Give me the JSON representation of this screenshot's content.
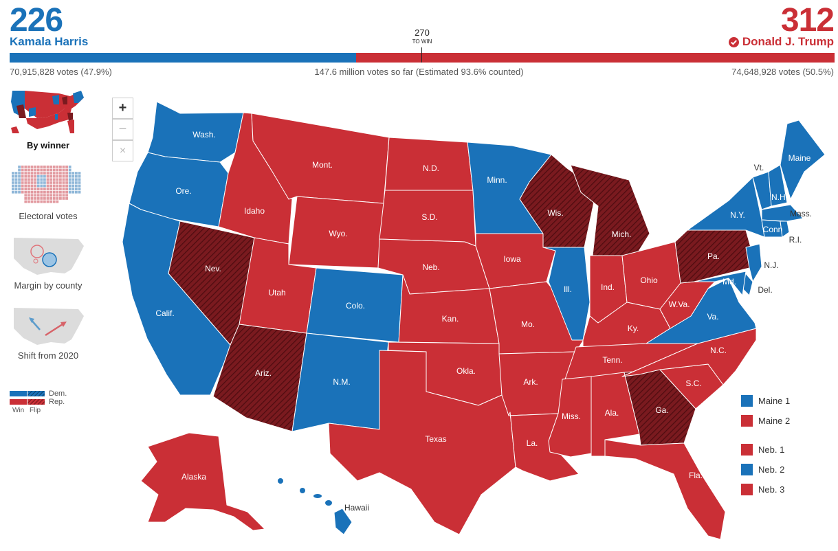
{
  "colors": {
    "dem": "#1a72b9",
    "rep": "#ca2f36",
    "rep_flip": "#7a1a1f",
    "dem_flip": "#0d3f66",
    "border": "#ffffff"
  },
  "header": {
    "harris_ev": "226",
    "harris_name": "Kamala Harris",
    "trump_ev": "312",
    "trump_name": "Donald J. Trump",
    "to_win_num": "270",
    "to_win_label": "TO WIN",
    "harris_votes": "70,915,828 votes (47.9%)",
    "total_votes": "147.6 million votes so far (Estimated 93.6% counted)",
    "trump_votes": "74,648,928 votes (50.5%)",
    "harris_ev_fraction": 0.4201,
    "winner_icon": "check-circle-icon"
  },
  "thumbnails": [
    {
      "label": "By winner",
      "selected": true
    },
    {
      "label": "Electoral votes",
      "selected": false
    },
    {
      "label": "Margin by county",
      "selected": false
    },
    {
      "label": "Shift from 2020",
      "selected": false
    }
  ],
  "key": {
    "dem": "Dem.",
    "rep": "Rep.",
    "win": "Win",
    "flip": "Flip"
  },
  "zoom": {
    "in": "+",
    "out": "−",
    "reset": "×"
  },
  "districts": [
    {
      "label": "Maine 1",
      "party": "dem"
    },
    {
      "label": "Maine 2",
      "party": "rep"
    },
    {
      "label": "Neb. 1",
      "party": "rep"
    },
    {
      "label": "Neb. 2",
      "party": "dem"
    },
    {
      "label": "Neb. 3",
      "party": "rep"
    }
  ],
  "states": {
    "wa": "Wash.",
    "or": "Ore.",
    "ca": "Calif.",
    "nv": "Nev.",
    "id": "Idaho",
    "mt": "Mont.",
    "wy": "Wyo.",
    "ut": "Utah",
    "az": "Ariz.",
    "co": "Colo.",
    "nm": "N.M.",
    "nd": "N.D.",
    "sd": "S.D.",
    "ne": "Neb.",
    "ks": "Kan.",
    "ok": "Okla.",
    "tx": "Texas",
    "mn": "Minn.",
    "ia": "Iowa",
    "mo": "Mo.",
    "ar": "Ark.",
    "la": "La.",
    "wi": "Wis.",
    "il": "Ill.",
    "mi": "Mich.",
    "in": "Ind.",
    "oh": "Ohio",
    "ky": "Ky.",
    "tn": "Tenn.",
    "ms": "Miss.",
    "al": "Ala.",
    "ga": "Ga.",
    "fl": "Fla.",
    "sc": "S.C.",
    "nc": "N.C.",
    "va": "Va.",
    "wv": "W.Va.",
    "pa": "Pa.",
    "ny": "N.Y.",
    "vt": "Vt.",
    "nh": "N.H.",
    "me": "Maine",
    "ma": "Mass.",
    "ct": "Conn",
    "ri": "R.I.",
    "nj": "N.J.",
    "de": "Del.",
    "md": "Md.",
    "ak": "Alaska",
    "hi": "Hawaii"
  }
}
